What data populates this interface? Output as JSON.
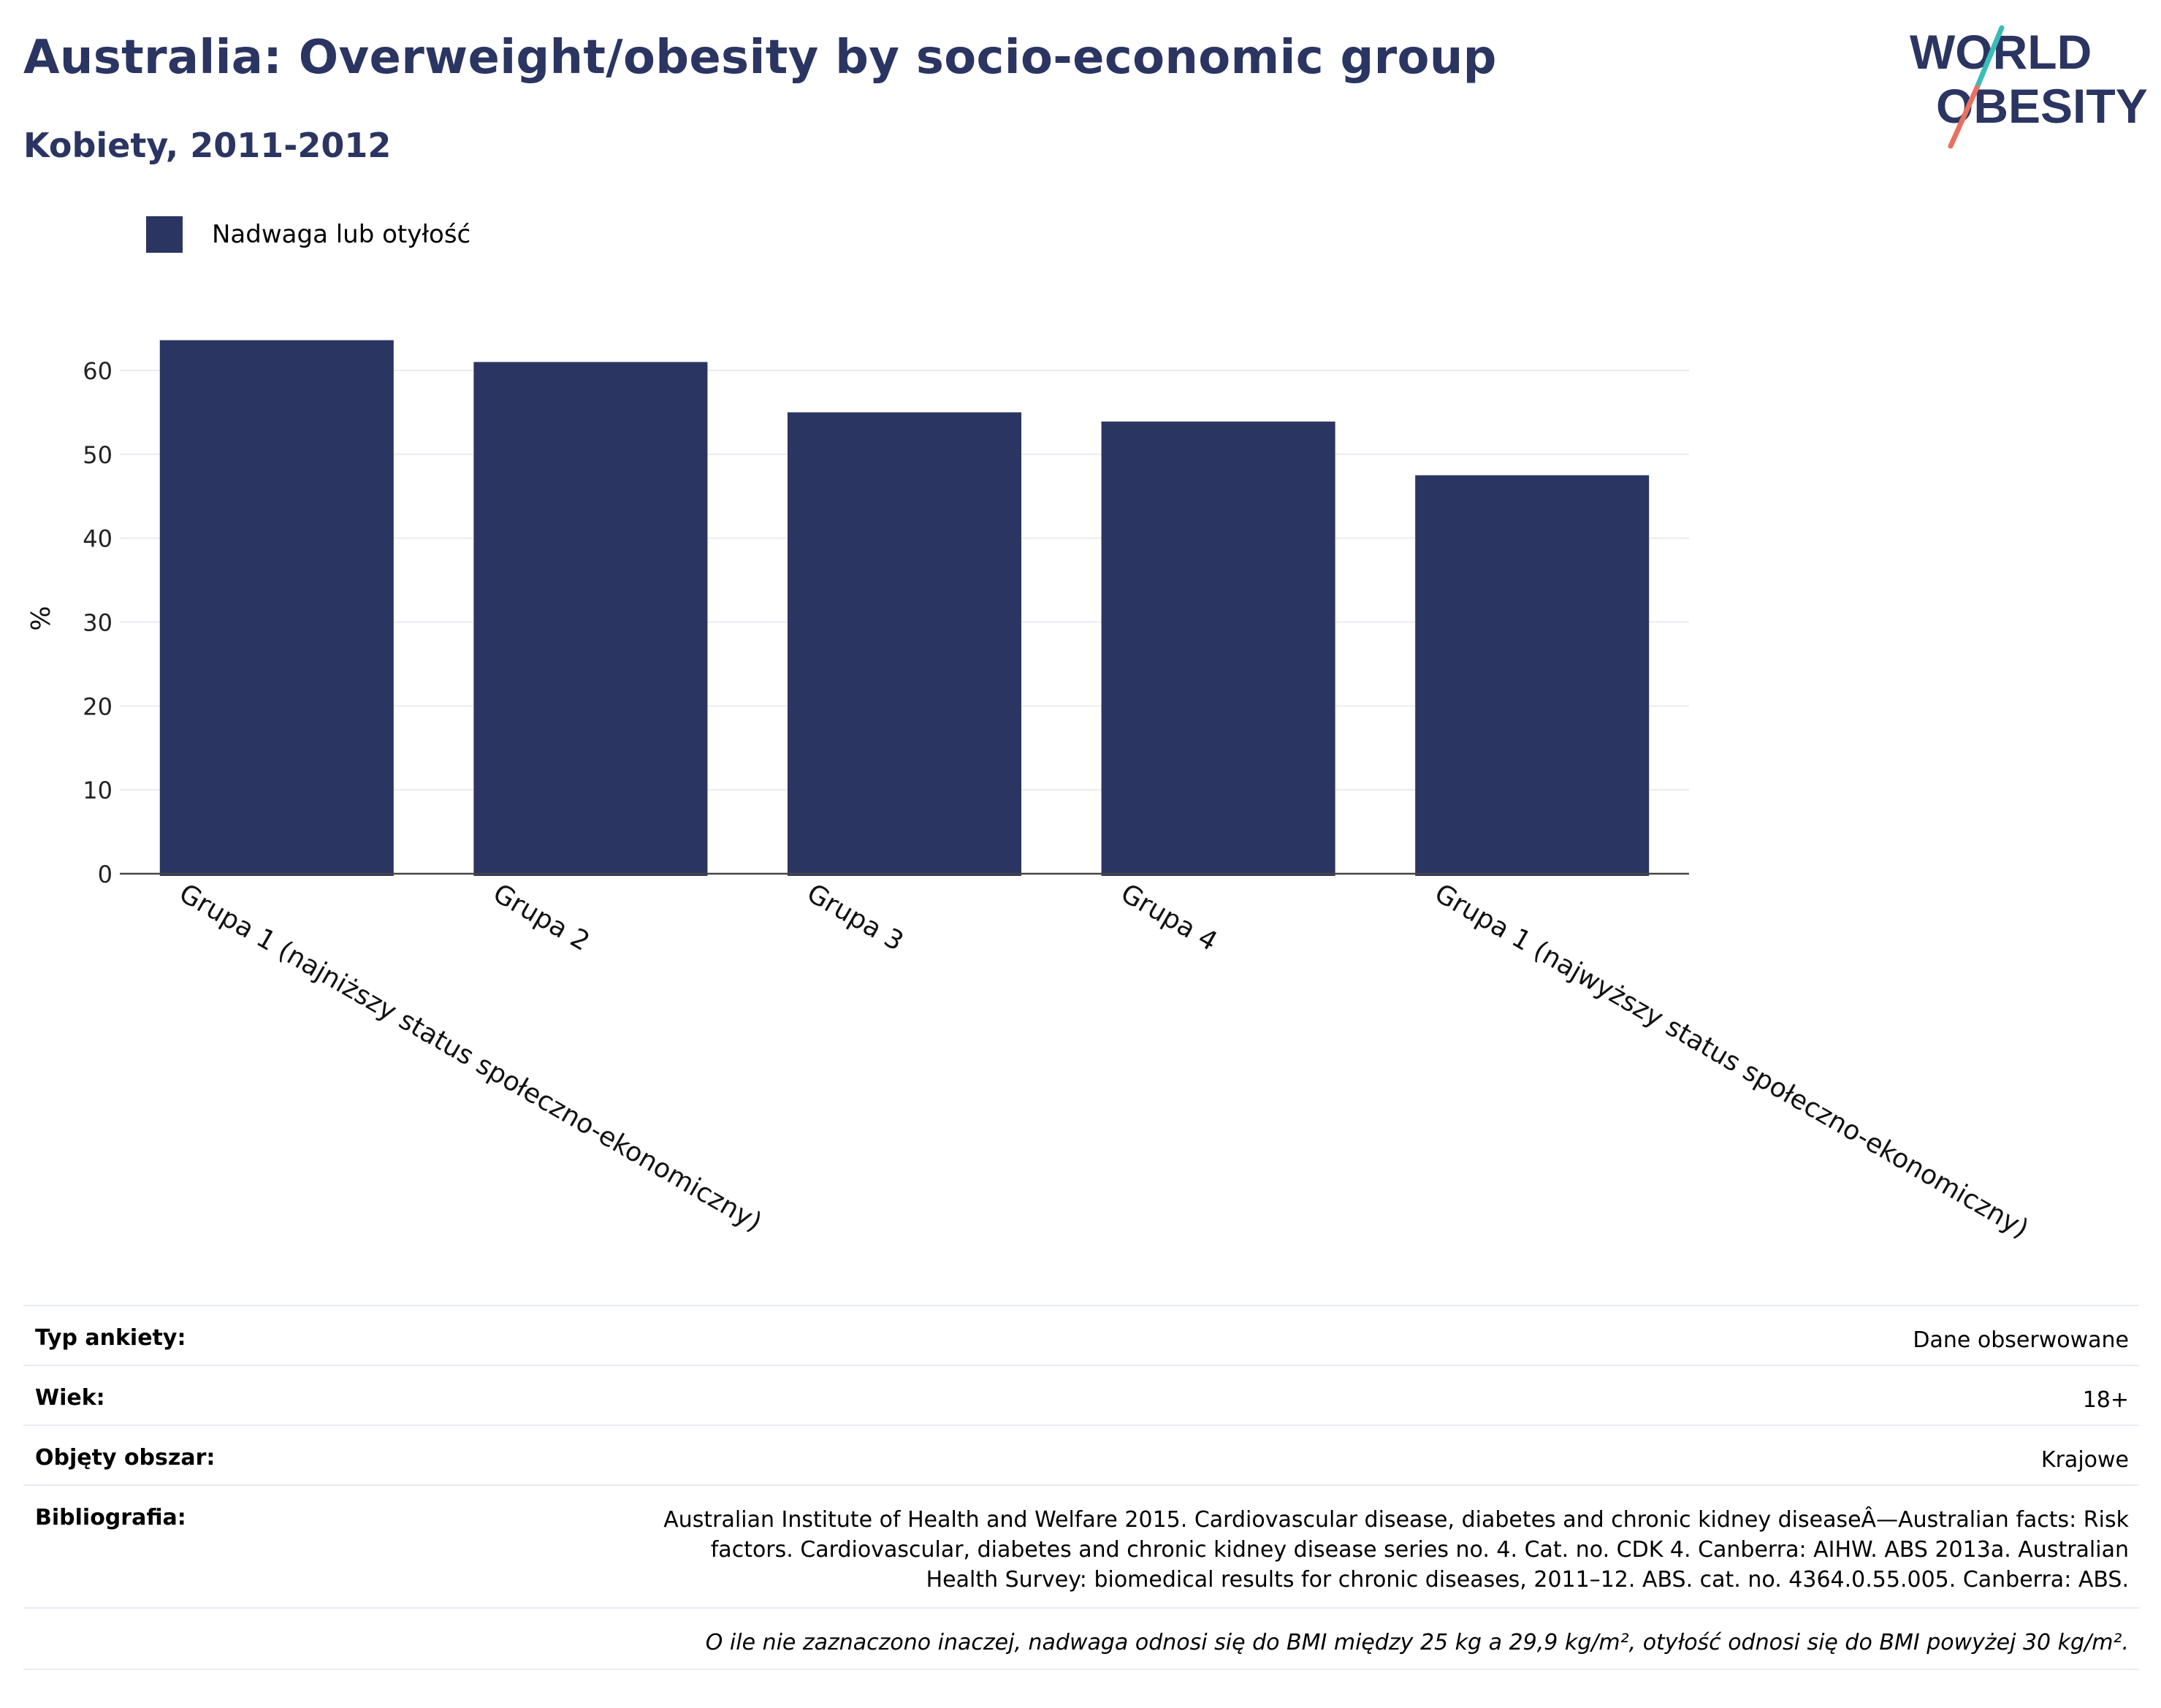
{
  "header": {
    "title": "Australia: Overweight/obesity by socio-economic group",
    "subtitle": "Kobiety, 2011-2012"
  },
  "logo": {
    "line1": "WORLD",
    "line2": "OBESITY"
  },
  "colors": {
    "bar": "#2b3562",
    "title": "#2b3562",
    "logo_slash_top": "#3cbcb6",
    "logo_slash_bottom": "#e8715f"
  },
  "chart_data": {
    "type": "bar",
    "categories": [
      "Grupa 1 (najniższy status społeczno-ekonomiczny)",
      "Grupa 2",
      "Grupa 3",
      "Grupa 4",
      "Grupa 1 (najwyższy status społeczno-ekonomiczny)"
    ],
    "series": [
      {
        "name": "Nadwaga lub otyłość",
        "values": [
          63.6,
          61.0,
          55.0,
          53.9,
          47.5
        ]
      }
    ],
    "ylabel": "%",
    "xlabel": "",
    "ylim": [
      0,
      65
    ],
    "yticks": [
      0,
      10,
      20,
      30,
      40,
      50,
      60
    ],
    "grid": true,
    "legend": "top-left"
  },
  "info": {
    "survey_type": {
      "label": "Typ ankiety:",
      "value": "Dane obserwowane"
    },
    "age": {
      "label": "Wiek:",
      "value": "18+"
    },
    "area": {
      "label": "Objęty obszar:",
      "value": "Krajowe"
    },
    "bibliography": {
      "label": "Bibliografia:",
      "lines": [
        "Australian Institute of Health and Welfare 2015. Cardiovascular disease, diabetes and chronic kidney diseaseÂ—Australian facts: Risk",
        "factors. Cardiovascular, diabetes and chronic kidney disease series no. 4. Cat. no. CDK 4. Canberra: AIHW. ABS 2013a. Australian",
        "Health Survey: biomedical results for chronic diseases, 2011–12. ABS. cat. no. 4364.0.55.005. Canberra: ABS."
      ]
    },
    "note": "O ile nie zaznaczono inaczej, nadwaga odnosi się do BMI między 25 kg a 29,9 kg/m², otyłość odnosi się do BMI powyżej 30 kg/m²."
  }
}
